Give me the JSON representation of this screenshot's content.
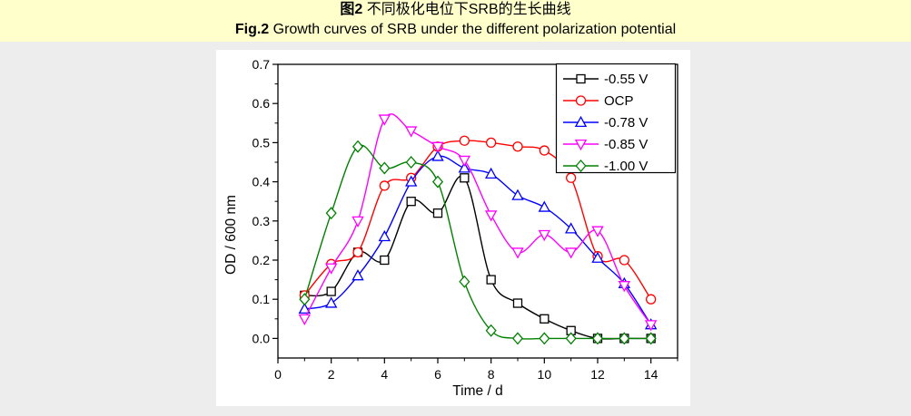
{
  "caption": {
    "zh_prefix": "图2",
    "zh_rest": " 不同极化电位下SRB的生长曲线",
    "en_prefix": "Fig.2",
    "en_rest": " Growth curves of SRB under the different polarization potential",
    "background": "#FFFFCC"
  },
  "page": {
    "background": "#EDEDED",
    "figure_background": "#FFFFFF"
  },
  "chart_data": {
    "type": "line",
    "title": "",
    "xlabel": "Time / d",
    "ylabel": "OD / 600 nm",
    "xlim": [
      0,
      15
    ],
    "ylim": [
      -0.05,
      0.7
    ],
    "x_major_ticks": [
      0,
      2,
      4,
      6,
      8,
      10,
      12,
      14
    ],
    "x_minor_ticks": [
      1,
      3,
      5,
      7,
      9,
      11,
      13,
      15
    ],
    "y_major_ticks": [
      0.0,
      0.1,
      0.2,
      0.3,
      0.4,
      0.5,
      0.6,
      0.7
    ],
    "y_minor_ticks": [
      0.05,
      0.15,
      0.25,
      0.35,
      0.45,
      0.55,
      0.65
    ],
    "grid": false,
    "legend_position": "top-right",
    "x": [
      1,
      2,
      3,
      4,
      5,
      6,
      7,
      8,
      9,
      10,
      11,
      12,
      13,
      14
    ],
    "series": [
      {
        "name": "-0.55 V",
        "color": "#000000",
        "marker": "square",
        "values": [
          0.11,
          0.12,
          0.22,
          0.2,
          0.35,
          0.32,
          0.41,
          0.15,
          0.09,
          0.05,
          0.02,
          0.0,
          0.0,
          0.0
        ]
      },
      {
        "name": "OCP",
        "color": "#FF0000",
        "marker": "circle",
        "values": [
          0.11,
          0.19,
          0.22,
          0.39,
          0.41,
          0.49,
          0.505,
          0.5,
          0.49,
          0.48,
          0.41,
          0.21,
          0.2,
          0.1
        ]
      },
      {
        "name": "-0.78 V",
        "color": "#0000FF",
        "marker": "triangle-up",
        "values": [
          0.075,
          0.09,
          0.16,
          0.26,
          0.4,
          0.465,
          0.435,
          0.42,
          0.365,
          0.335,
          0.28,
          0.205,
          0.14,
          0.035
        ]
      },
      {
        "name": "-0.85 V",
        "color": "#FF00FF",
        "marker": "triangle-down",
        "values": [
          0.05,
          0.18,
          0.3,
          0.56,
          0.53,
          0.49,
          0.455,
          0.315,
          0.22,
          0.265,
          0.22,
          0.275,
          0.135,
          0.035
        ]
      },
      {
        "name": "-1.00 V",
        "color": "#008000",
        "marker": "diamond",
        "values": [
          0.1,
          0.32,
          0.49,
          0.435,
          0.45,
          0.4,
          0.145,
          0.02,
          0.0,
          0.0,
          0.0,
          0.0,
          0.0,
          0.0
        ]
      }
    ]
  }
}
